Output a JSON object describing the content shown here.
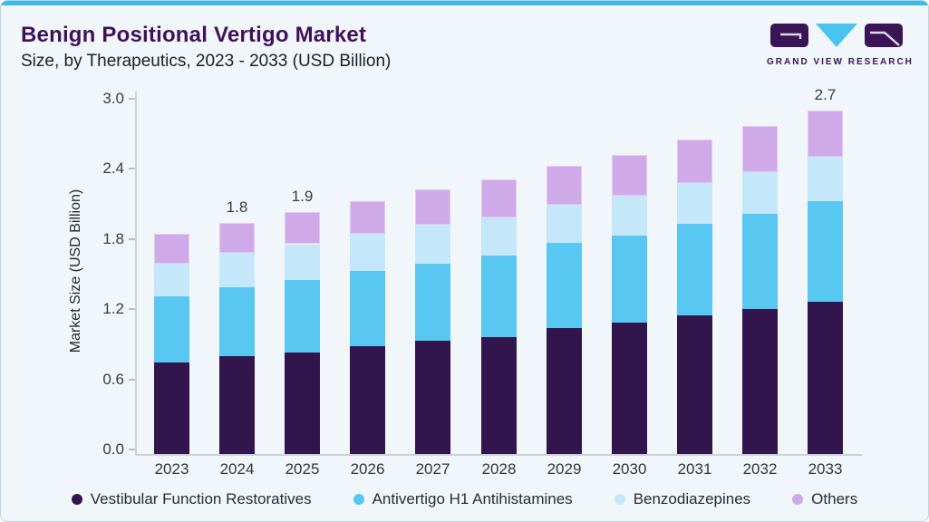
{
  "header": {
    "title": "Benign Positional Vertigo Market",
    "subtitle": "Size, by Therapeutics, 2023 - 2033 (USD Billion)",
    "logo_text": "GRAND VIEW RESEARCH"
  },
  "colors": {
    "accent_cyan": "#3fb9e8",
    "title_purple": "#401259",
    "card_background": "#f0f6fa",
    "axis_gray": "#ccd2d9"
  },
  "chart_data": {
    "type": "bar",
    "stacked": true,
    "title": "Benign Positional Vertigo Market Size, by Therapeutics, 2023 - 2033 (USD Billion)",
    "ylabel": "Market Size (USD Billion)",
    "ylim": [
      0,
      3.0
    ],
    "ytick_labels": [
      "0.0",
      "0.6",
      "1.2",
      "1.8",
      "2.4",
      "3.0"
    ],
    "grid": false,
    "legend_position": "bottom",
    "categories": [
      "2023",
      "2024",
      "2025",
      "2026",
      "2027",
      "2028",
      "2029",
      "2030",
      "2031",
      "2032",
      "2033"
    ],
    "series": [
      {
        "key": "vestibular-function-restoratives",
        "name": "Vestibular Function Restoratives",
        "color": "#33154e",
        "values": [
          0.72,
          0.77,
          0.8,
          0.85,
          0.89,
          0.92,
          0.99,
          1.03,
          1.09,
          1.14,
          1.2
        ]
      },
      {
        "key": "antivertigo-h1-antihistamines",
        "name": "Antivertigo H1 Antihistamines",
        "color": "#58c7f2",
        "values": [
          0.52,
          0.54,
          0.57,
          0.59,
          0.61,
          0.64,
          0.67,
          0.69,
          0.72,
          0.75,
          0.79
        ]
      },
      {
        "key": "benzodiazepines",
        "name": "Benzodiazepines",
        "color": "#c4e8fa",
        "values": [
          0.26,
          0.27,
          0.28,
          0.29,
          0.3,
          0.3,
          0.3,
          0.31,
          0.32,
          0.33,
          0.35
        ]
      },
      {
        "key": "others",
        "name": "Others",
        "color": "#d0a9e8",
        "border_color": "#e2c9f3",
        "values": [
          0.23,
          0.24,
          0.25,
          0.26,
          0.28,
          0.3,
          0.31,
          0.32,
          0.34,
          0.36,
          0.36
        ]
      }
    ],
    "total_labels": {
      "2024": "1.8",
      "2025": "1.9",
      "2033": "2.7"
    }
  }
}
